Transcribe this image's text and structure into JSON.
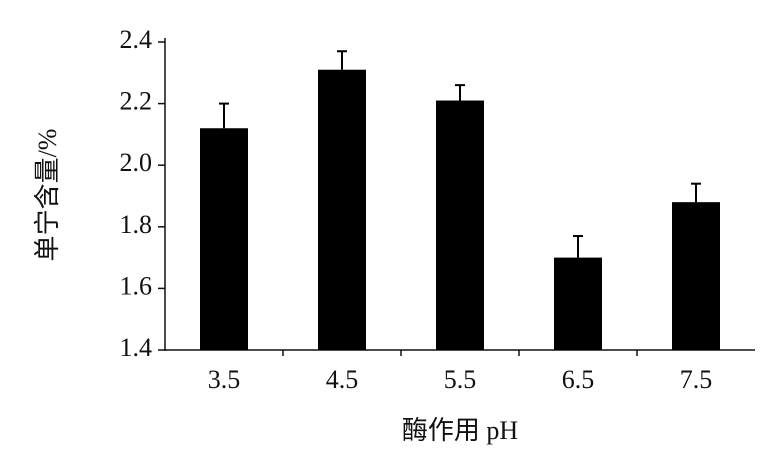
{
  "chart_data": {
    "type": "bar",
    "x_label": "酶作用 pH",
    "y_label": "单宁含量/%",
    "categories": [
      "3.5",
      "4.5",
      "5.5",
      "6.5",
      "7.5"
    ],
    "values": [
      2.12,
      2.31,
      2.21,
      1.7,
      1.88
    ],
    "errors": [
      0.08,
      0.06,
      0.05,
      0.07,
      0.06
    ],
    "color": "#000000",
    "ylim": [
      1.4,
      2.4
    ],
    "yticks": [
      1.4,
      1.6,
      1.8,
      {
        "value": 2.0,
        "label": "2.0"
      },
      2.2,
      2.4
    ],
    "grid": false
  }
}
